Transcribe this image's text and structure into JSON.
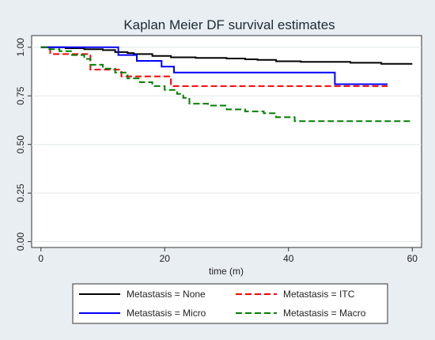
{
  "chart_data": {
    "type": "line",
    "subtype": "step",
    "title": "Kaplan Meier DF survival estimates",
    "xlabel": "time (m)",
    "ylabel": "",
    "xlim": [
      -1.5,
      61.5
    ],
    "ylim": [
      -0.03,
      1.06
    ],
    "xticks": [
      0,
      20,
      40,
      60
    ],
    "xtick_labels": [
      "0",
      "20",
      "40",
      "60"
    ],
    "yticks": [
      0,
      0.25,
      0.5,
      0.75,
      1
    ],
    "ytick_labels": [
      "0.00",
      "0.25",
      "0.50",
      "0.75",
      "1.00"
    ],
    "grid": "horizontal",
    "legend_position": "bottom",
    "series": [
      {
        "name": "Metastasis = None",
        "color": "#000000",
        "dash": "solid",
        "x": [
          0,
          4,
          7,
          10,
          12,
          14,
          15,
          18,
          21,
          25,
          30,
          33,
          35,
          38,
          42,
          50,
          55,
          60
        ],
        "y": [
          1.0,
          0.995,
          0.99,
          0.985,
          0.975,
          0.97,
          0.965,
          0.955,
          0.948,
          0.945,
          0.942,
          0.938,
          0.935,
          0.928,
          0.925,
          0.92,
          0.915,
          0.915
        ]
      },
      {
        "name": "Metastasis = ITC",
        "color": "#ff0000",
        "dash": "dashed",
        "x": [
          0,
          1.5,
          8,
          13,
          21,
          56
        ],
        "y": [
          1.0,
          0.965,
          0.885,
          0.85,
          0.8,
          0.8
        ]
      },
      {
        "name": "Metastasis = Micro",
        "color": "#0000ff",
        "dash": "solid",
        "x": [
          0,
          12.5,
          15.5,
          19.5,
          21.5,
          47.5,
          56
        ],
        "y": [
          1.0,
          0.96,
          0.93,
          0.9,
          0.87,
          0.81,
          0.81
        ]
      },
      {
        "name": "Metastasis = Macro",
        "color": "#008000",
        "dash": "dashed",
        "x": [
          0,
          1,
          3,
          5,
          7,
          8,
          10,
          12,
          14,
          16,
          18,
          20,
          22,
          23,
          24,
          27,
          30,
          33,
          36,
          38,
          41,
          60
        ],
        "y": [
          1.0,
          0.99,
          0.98,
          0.96,
          0.94,
          0.91,
          0.89,
          0.87,
          0.84,
          0.82,
          0.8,
          0.78,
          0.76,
          0.74,
          0.71,
          0.7,
          0.68,
          0.67,
          0.66,
          0.64,
          0.62,
          0.62
        ]
      }
    ]
  }
}
